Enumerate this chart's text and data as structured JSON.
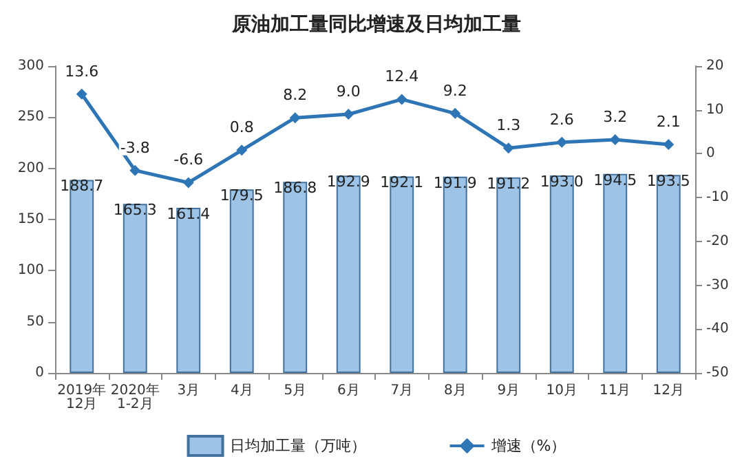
{
  "chart_data": {
    "type": "bar",
    "title": "原油加工量同比增速及日均加工量",
    "categories": [
      "2019年\n12月",
      "2020年\n1-2月",
      "3月",
      "4月",
      "5月",
      "6月",
      "7月",
      "8月",
      "9月",
      "10月",
      "11月",
      "12月"
    ],
    "series": [
      {
        "name": "日均加工量（万吨）",
        "color": "#9dc3e6",
        "values": [
          188.7,
          165.3,
          161.4,
          179.5,
          186.8,
          192.9,
          192.1,
          191.9,
          191.2,
          193.0,
          194.5,
          193.5
        ],
        "value_labels": [
          "188.7",
          "165.3",
          "161.4",
          "179.5",
          "186.8",
          "192.9",
          "192.1",
          "191.9",
          "191.2",
          "193.0",
          "194.5",
          "193.5"
        ]
      },
      {
        "name": "增速（%）",
        "type": "line",
        "axis": "y2",
        "color": "#2e75b6",
        "marker": "diamond",
        "values": [
          13.6,
          -3.8,
          -6.6,
          0.8,
          8.2,
          9.0,
          12.4,
          9.2,
          1.3,
          2.6,
          3.2,
          2.1
        ],
        "value_labels": [
          "13.6",
          "-3.8",
          "-6.6",
          "0.8",
          "8.2",
          "9.0",
          "12.4",
          "9.2",
          "1.3",
          "2.6",
          "3.2",
          "2.1"
        ]
      }
    ],
    "ylim": [
      0,
      300
    ],
    "yticks": [
      0,
      50,
      100,
      150,
      200,
      250,
      300
    ],
    "y2lim": [
      -50,
      20
    ],
    "y2ticks": [
      -50,
      -40,
      -30,
      -20,
      -10,
      0,
      10,
      20
    ],
    "grid": false,
    "legend": "bottom"
  }
}
